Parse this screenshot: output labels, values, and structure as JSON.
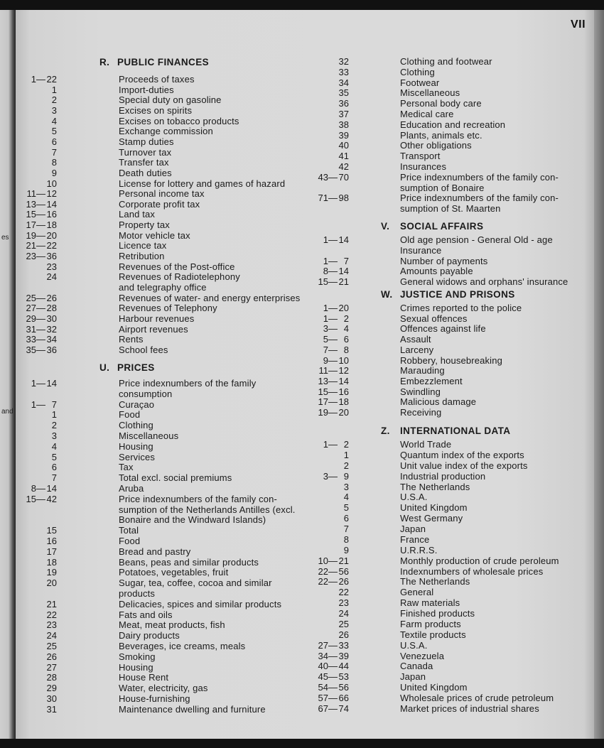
{
  "page_number": "VII",
  "margin_fragments": [
    "es",
    "and"
  ],
  "left_column": [
    {
      "letter": "R.",
      "heading": "PUBLIC FINANCES",
      "rows": [
        {
          "num": "1— 22",
          "text": "Proceeds of taxes"
        },
        {
          "num": "1",
          "text": "Import-duties"
        },
        {
          "num": "2",
          "text": "Special duty on gasoline"
        },
        {
          "num": "3",
          "text": "Excises on spirits"
        },
        {
          "num": "4",
          "text": "Excises on tobacco products"
        },
        {
          "num": "5",
          "text": "Exchange commission"
        },
        {
          "num": "6",
          "text": "Stamp duties"
        },
        {
          "num": "7",
          "text": "Turnover tax"
        },
        {
          "num": "8",
          "text": "Transfer tax"
        },
        {
          "num": "9",
          "text": "Death duties"
        },
        {
          "num": "10",
          "text": "License for lottery and games of hazard"
        },
        {
          "num": "11— 12",
          "text": "Personal income tax"
        },
        {
          "num": "13— 14",
          "text": "Corporate profit tax"
        },
        {
          "num": "15— 16",
          "text": "Land tax"
        },
        {
          "num": "17— 18",
          "text": "Property tax"
        },
        {
          "num": "19— 20",
          "text": "Motor vehicle tax"
        },
        {
          "num": "21— 22",
          "text": "Licence tax"
        },
        {
          "num": "23— 36",
          "text": "Retribution"
        },
        {
          "num": "23",
          "text": "Revenues of the Post-office"
        },
        {
          "num": "24",
          "text": "Revenues of Radiotelephony"
        },
        {
          "num": "",
          "text": "and telegraphy office"
        },
        {
          "num": "25— 26",
          "text": "Revenues of water- and energy enterprises"
        },
        {
          "num": "27— 28",
          "text": "Revenues of Telephony"
        },
        {
          "num": "29— 30",
          "text": "Harbour revenues"
        },
        {
          "num": "31— 32",
          "text": "Airport revenues"
        },
        {
          "num": "33— 34",
          "text": "Rents"
        },
        {
          "num": "35— 36",
          "text": "School fees"
        }
      ]
    },
    {
      "letter": "U.",
      "heading": "PRICES",
      "rows": [
        {
          "num": "1— 14",
          "text": "Price indexnumbers of the family"
        },
        {
          "num": "",
          "text": "consumption"
        },
        {
          "num": "1— 7",
          "text": "Curaçao"
        },
        {
          "num": "1",
          "text": "Food"
        },
        {
          "num": "2",
          "text": "Clothing"
        },
        {
          "num": "3",
          "text": "Miscellaneous"
        },
        {
          "num": "4",
          "text": "Housing"
        },
        {
          "num": "5",
          "text": "Services"
        },
        {
          "num": "6",
          "text": "Tax"
        },
        {
          "num": "7",
          "text": "Total excl. social premiums"
        },
        {
          "num": "8— 14",
          "text": "Aruba"
        },
        {
          "num": "15— 42",
          "text": "Price indexnumbers of the family con-"
        },
        {
          "num": "",
          "text": "sumption of the Netherlands Antilles (excl."
        },
        {
          "num": "",
          "text": "Bonaire and the Windward Islands)"
        },
        {
          "num": "15",
          "text": "Total"
        },
        {
          "num": "16",
          "text": "Food"
        },
        {
          "num": "17",
          "text": "Bread and pastry"
        },
        {
          "num": "18",
          "text": "Beans, peas and similar products"
        },
        {
          "num": "19",
          "text": "Potatoes, vegetables, fruit"
        },
        {
          "num": "20",
          "text": "Sugar, tea, coffee, cocoa and similar"
        },
        {
          "num": "",
          "text": "products"
        },
        {
          "num": "21",
          "text": "Delicacies, spices and similar products"
        },
        {
          "num": "22",
          "text": "Fats and oils"
        },
        {
          "num": "23",
          "text": "Meat, meat products, fish"
        },
        {
          "num": "24",
          "text": "Dairy products"
        },
        {
          "num": "25",
          "text": "Beverages, ice creams, meals"
        },
        {
          "num": "26",
          "text": "Smoking"
        },
        {
          "num": "27",
          "text": "Housing"
        },
        {
          "num": "28",
          "text": "House Rent"
        },
        {
          "num": "29",
          "text": "Water, electricity, gas"
        },
        {
          "num": "30",
          "text": "House-furnishing"
        },
        {
          "num": "31",
          "text": "Maintenance dwelling and furniture"
        }
      ]
    }
  ],
  "right_column": [
    {
      "letter": "",
      "heading": "",
      "rows": [
        {
          "num": "32",
          "text": "Clothing and footwear"
        },
        {
          "num": "33",
          "text": "Clothing"
        },
        {
          "num": "34",
          "text": "Footwear"
        },
        {
          "num": "35",
          "text": "Miscellaneous"
        },
        {
          "num": "36",
          "text": "Personal body care"
        },
        {
          "num": "37",
          "text": "Medical care"
        },
        {
          "num": "38",
          "text": "Education and recreation"
        },
        {
          "num": "39",
          "text": "Plants, animals etc."
        },
        {
          "num": "40",
          "text": "Other obligations"
        },
        {
          "num": "41",
          "text": "Transport"
        },
        {
          "num": "42",
          "text": "Insurances"
        },
        {
          "num": "43— 70",
          "text": "Price indexnumbers of the family con-"
        },
        {
          "num": "",
          "text": "sumption of Bonaire"
        },
        {
          "num": "71— 98",
          "text": "Price indexnumbers of the family con-"
        },
        {
          "num": "",
          "text": "sumption of St. Maarten"
        }
      ]
    },
    {
      "letter": "V.",
      "heading": "SOCIAL AFFAIRS",
      "rows": [
        {
          "num": "1— 14",
          "text": "Old age pension - General Old - age"
        },
        {
          "num": "",
          "text": "Insurance"
        },
        {
          "num": "1— 7",
          "text": "Number of payments"
        },
        {
          "num": "8— 14",
          "text": "Amounts payable"
        },
        {
          "num": "15— 21",
          "text": "General widows and orphans' insurance"
        }
      ]
    },
    {
      "letter": "W.",
      "heading": "JUSTICE AND PRISONS",
      "rows": [
        {
          "num": "1— 20",
          "text": "Crimes reported to the police"
        },
        {
          "num": "1— 2",
          "text": "Sexual offences"
        },
        {
          "num": "3— 4",
          "text": "Offences against life"
        },
        {
          "num": "5— 6",
          "text": "Assault"
        },
        {
          "num": "7— 8",
          "text": "Larceny"
        },
        {
          "num": "9— 10",
          "text": "Robbery, housebreaking"
        },
        {
          "num": "11— 12",
          "text": "Marauding"
        },
        {
          "num": "13— 14",
          "text": "Embezzlement"
        },
        {
          "num": "15— 16",
          "text": "Swindling"
        },
        {
          "num": "17— 18",
          "text": "Malicious damage"
        },
        {
          "num": "19— 20",
          "text": "Receiving"
        }
      ]
    },
    {
      "letter": "Z.",
      "heading": "INTERNATIONAL DATA",
      "rows": [
        {
          "num": "1— 2",
          "text": "World Trade"
        },
        {
          "num": "1",
          "text": "Quantum index of the exports"
        },
        {
          "num": "2",
          "text": "Unit value index of the exports"
        },
        {
          "num": "3— 9",
          "text": "Industrial production"
        },
        {
          "num": "3",
          "text": "The Netherlands"
        },
        {
          "num": "4",
          "text": "U.S.A."
        },
        {
          "num": "5",
          "text": "United Kingdom"
        },
        {
          "num": "6",
          "text": "West Germany"
        },
        {
          "num": "7",
          "text": "Japan"
        },
        {
          "num": "8",
          "text": "France"
        },
        {
          "num": "9",
          "text": "U.R.R.S."
        },
        {
          "num": "10— 21",
          "text": "Monthly production of crude peroleum"
        },
        {
          "num": "22— 56",
          "text": "Indexnumbers of wholesale prices"
        },
        {
          "num": "22— 26",
          "text": "The Netherlands"
        },
        {
          "num": "22",
          "text": "General"
        },
        {
          "num": "23",
          "text": "Raw materials"
        },
        {
          "num": "24",
          "text": "Finished products"
        },
        {
          "num": "25",
          "text": "Farm products"
        },
        {
          "num": "26",
          "text": "Textile products"
        },
        {
          "num": "27— 33",
          "text": "U.S.A."
        },
        {
          "num": "34— 39",
          "text": "Venezuela"
        },
        {
          "num": "40— 44",
          "text": "Canada"
        },
        {
          "num": "45— 53",
          "text": "Japan"
        },
        {
          "num": "54— 56",
          "text": "United Kingdom"
        },
        {
          "num": "57— 66",
          "text": "Wholesale prices of crude petroleum"
        },
        {
          "num": "67— 74",
          "text": "Market prices of industrial shares"
        }
      ]
    }
  ]
}
